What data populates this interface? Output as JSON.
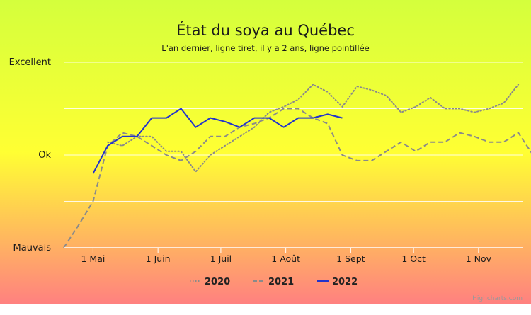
{
  "chart_data": {
    "type": "line",
    "title": "État du soya au Québec",
    "subtitle": "L'an dernier, ligne tiret, il y a 2 ans, ligne pointillée",
    "y_categories": [
      "Mauvais",
      "Ok",
      "Excellent"
    ],
    "ylim": [
      0,
      100
    ],
    "y_gridlines": [
      0,
      25,
      50,
      75,
      100
    ],
    "xlim": [
      "2022-04-17",
      "2022-11-22"
    ],
    "x_ticks": [
      {
        "date": "2022-05-01",
        "label": "1 Mai"
      },
      {
        "date": "2022-06-01",
        "label": "1 Juin"
      },
      {
        "date": "2022-07-01",
        "label": "1 Juil"
      },
      {
        "date": "2022-08-01",
        "label": "1 Août"
      },
      {
        "date": "2022-09-01",
        "label": "1 Sept"
      },
      {
        "date": "2022-10-01",
        "label": "1 Oct"
      },
      {
        "date": "2022-11-01",
        "label": "1 Nov"
      }
    ],
    "background_gradient": [
      "#d4ff3c",
      "#ffff33",
      "#ff8080"
    ],
    "series": [
      {
        "name": "2020",
        "style": "dotted",
        "color": "#8a8a8a",
        "points": [
          [
            "2022-05-08",
            57
          ],
          [
            "2022-05-15",
            55
          ],
          [
            "2022-05-22",
            60
          ],
          [
            "2022-05-29",
            60
          ],
          [
            "2022-06-05",
            52
          ],
          [
            "2022-06-12",
            52
          ],
          [
            "2022-06-19",
            41
          ],
          [
            "2022-06-26",
            50
          ],
          [
            "2022-07-03",
            55
          ],
          [
            "2022-07-10",
            60
          ],
          [
            "2022-07-17",
            65
          ],
          [
            "2022-07-24",
            73
          ],
          [
            "2022-07-31",
            76
          ],
          [
            "2022-08-07",
            80
          ],
          [
            "2022-08-14",
            88
          ],
          [
            "2022-08-21",
            84
          ],
          [
            "2022-08-28",
            76
          ],
          [
            "2022-09-04",
            87
          ],
          [
            "2022-09-11",
            85
          ],
          [
            "2022-09-18",
            82
          ],
          [
            "2022-09-25",
            73
          ],
          [
            "2022-10-02",
            76
          ],
          [
            "2022-10-09",
            81
          ],
          [
            "2022-10-16",
            75
          ],
          [
            "2022-10-23",
            75
          ],
          [
            "2022-10-30",
            73
          ],
          [
            "2022-11-06",
            75
          ],
          [
            "2022-11-13",
            78
          ],
          [
            "2022-11-20",
            88
          ]
        ]
      },
      {
        "name": "2021",
        "style": "dashed",
        "color": "#8a8a8a",
        "points": [
          [
            "2022-04-17",
            0
          ],
          [
            "2022-04-24",
            12
          ],
          [
            "2022-05-01",
            25
          ],
          [
            "2022-05-08",
            55
          ],
          [
            "2022-05-15",
            62
          ],
          [
            "2022-05-22",
            60
          ],
          [
            "2022-05-29",
            55
          ],
          [
            "2022-06-05",
            50
          ],
          [
            "2022-06-12",
            47
          ],
          [
            "2022-06-19",
            52
          ],
          [
            "2022-06-26",
            60
          ],
          [
            "2022-07-03",
            60
          ],
          [
            "2022-07-10",
            65
          ],
          [
            "2022-07-17",
            67
          ],
          [
            "2022-07-24",
            70
          ],
          [
            "2022-07-31",
            75
          ],
          [
            "2022-08-07",
            75
          ],
          [
            "2022-08-14",
            70
          ],
          [
            "2022-08-21",
            67
          ],
          [
            "2022-08-28",
            50
          ],
          [
            "2022-09-04",
            47
          ],
          [
            "2022-09-11",
            47
          ],
          [
            "2022-09-18",
            52
          ],
          [
            "2022-09-25",
            57
          ],
          [
            "2022-10-02",
            52
          ],
          [
            "2022-10-09",
            57
          ],
          [
            "2022-10-16",
            57
          ],
          [
            "2022-10-23",
            62
          ],
          [
            "2022-10-30",
            60
          ],
          [
            "2022-11-06",
            57
          ],
          [
            "2022-11-13",
            57
          ],
          [
            "2022-11-20",
            62
          ],
          [
            "2022-11-27",
            50
          ]
        ]
      },
      {
        "name": "2022",
        "style": "solid",
        "color": "#2233cc",
        "points": [
          [
            "2022-05-01",
            40
          ],
          [
            "2022-05-08",
            55
          ],
          [
            "2022-05-15",
            60
          ],
          [
            "2022-05-22",
            60
          ],
          [
            "2022-05-29",
            70
          ],
          [
            "2022-06-05",
            70
          ],
          [
            "2022-06-12",
            75
          ],
          [
            "2022-06-19",
            65
          ],
          [
            "2022-06-26",
            70
          ],
          [
            "2022-07-03",
            68
          ],
          [
            "2022-07-10",
            65
          ],
          [
            "2022-07-17",
            70
          ],
          [
            "2022-07-24",
            70
          ],
          [
            "2022-07-31",
            65
          ],
          [
            "2022-08-07",
            70
          ],
          [
            "2022-08-14",
            70
          ],
          [
            "2022-08-21",
            72
          ],
          [
            "2022-08-28",
            70
          ]
        ]
      }
    ],
    "legend": {
      "position": "bottom"
    },
    "credits": "Highcharts.com"
  }
}
